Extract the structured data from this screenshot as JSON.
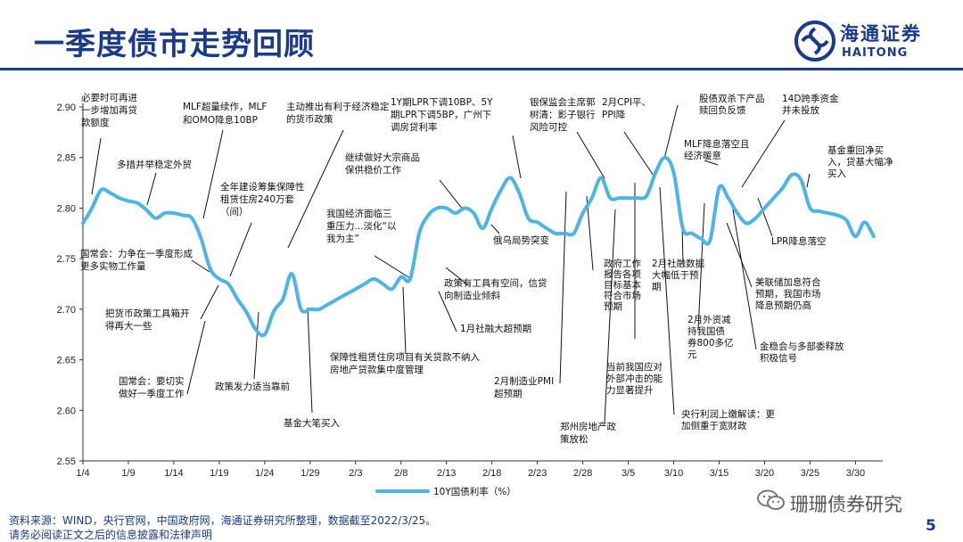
{
  "slide": {
    "title": "一季度债市走势回顾",
    "logo_cn": "海通证券",
    "logo_en": "HAITONG",
    "source": "资料来源：WIND，央行官网，中国政府网，海通证券研究所整理，数据截至2022/3/25。",
    "disclaimer": "请务必阅读正文之后的信息披露和法律声明",
    "watermark": "珊珊债券研究",
    "page_number": "5"
  },
  "colors": {
    "line": "#4db4e6",
    "brand": "#1a3a8c"
  },
  "chart_data": {
    "type": "line",
    "title": "",
    "xlabel": "",
    "ylabel": "",
    "ylim": [
      2.55,
      2.9
    ],
    "yticks": [
      "2.90",
      "2.85",
      "2.80",
      "2.75",
      "2.70",
      "2.65",
      "2.60",
      "2.55"
    ],
    "ytick_values": [
      2.9,
      2.85,
      2.8,
      2.75,
      2.7,
      2.65,
      2.6,
      2.55
    ],
    "xtick_labels": [
      "1/4",
      "1/9",
      "1/14",
      "1/19",
      "1/24",
      "1/29",
      "2/3",
      "2/8",
      "2/13",
      "2/18",
      "2/23",
      "2/28",
      "3/5",
      "3/10",
      "3/15",
      "3/20",
      "3/25",
      "3/30"
    ],
    "xtick_days": [
      0,
      5,
      10,
      15,
      20,
      25,
      30,
      35,
      40,
      45,
      50,
      55,
      60,
      65,
      70,
      75,
      80,
      85
    ],
    "xlim": [
      0,
      88
    ],
    "legend": "10Y国债利率（%）",
    "legend_position": "bottom",
    "series": [
      {
        "name": "10Y国债利率（%）",
        "x": [
          0,
          1,
          2,
          3,
          4,
          5,
          6,
          7,
          8,
          9,
          10,
          11,
          12,
          13,
          14,
          15,
          16,
          17,
          18,
          19,
          20,
          21,
          22,
          23,
          24,
          25,
          26,
          27,
          28,
          29,
          30,
          31,
          32,
          33,
          34,
          35,
          36,
          37,
          38,
          39,
          40,
          41,
          42,
          43,
          44,
          45,
          46,
          47,
          48,
          49,
          50,
          51,
          52,
          53,
          54,
          55,
          56,
          57,
          58,
          59,
          60,
          61,
          62,
          63,
          64,
          65,
          66,
          67,
          68,
          69,
          70,
          71,
          72,
          73,
          74,
          75,
          76,
          77,
          78,
          79,
          80,
          81,
          82,
          83,
          84,
          85,
          86,
          87
        ],
        "values": [
          2.785,
          2.8,
          2.818,
          2.815,
          2.81,
          2.807,
          2.805,
          2.798,
          2.79,
          2.795,
          2.795,
          2.793,
          2.79,
          2.77,
          2.74,
          2.73,
          2.725,
          2.71,
          2.697,
          2.68,
          2.675,
          2.698,
          2.71,
          2.735,
          2.7,
          2.7,
          2.7,
          2.705,
          2.71,
          2.715,
          2.72,
          2.725,
          2.73,
          2.725,
          2.72,
          2.732,
          2.73,
          2.775,
          2.793,
          2.8,
          2.8,
          2.795,
          2.8,
          2.795,
          2.78,
          2.8,
          2.818,
          2.83,
          2.815,
          2.79,
          2.786,
          2.78,
          2.775,
          2.775,
          2.775,
          2.795,
          2.81,
          2.83,
          2.81,
          2.81,
          2.81,
          2.81,
          2.812,
          2.835,
          2.85,
          2.835,
          2.78,
          2.775,
          2.77,
          2.768,
          2.82,
          2.81,
          2.795,
          2.785,
          2.79,
          2.8,
          2.81,
          2.82,
          2.833,
          2.828,
          2.8,
          2.797,
          2.795,
          2.793,
          2.788,
          2.772,
          2.786,
          2.772
        ]
      }
    ],
    "annotations": [
      {
        "id": "n01",
        "lines": [
          "必要时可再进",
          "一步增加再贷",
          "款额度"
        ]
      },
      {
        "id": "n02",
        "lines": [
          "多措并举稳定外贸"
        ]
      },
      {
        "id": "n03",
        "lines": [
          "MLF超量续作，MLF",
          "和OMO降息10BP"
        ]
      },
      {
        "id": "n04",
        "lines": [
          "主动推出有利于经济稳定",
          "的货币政策"
        ]
      },
      {
        "id": "n05",
        "lines": [
          "1Y期LPR下调10BP、5Y",
          "期LPR下调5BP，广州下",
          "调房贷利率"
        ]
      },
      {
        "id": "n06",
        "lines": [
          "银保监会主席郭",
          "树清：影子银行",
          "风险可控"
        ]
      },
      {
        "id": "n07",
        "lines": [
          "2月CPI平、",
          "PPI降"
        ]
      },
      {
        "id": "n08",
        "lines": [
          "股债双杀下产品",
          "赎回负反馈"
        ]
      },
      {
        "id": "n09",
        "lines": [
          "14D跨季资金",
          "并未投放"
        ]
      },
      {
        "id": "n10",
        "lines": [
          "MLF降息落空且",
          "经济暖意"
        ]
      },
      {
        "id": "n11",
        "lines": [
          "基金重回净买",
          "入，贷基大幅净",
          "买入"
        ]
      },
      {
        "id": "n12",
        "lines": [
          "继续做好大宗商品",
          "保供稳价工作"
        ]
      },
      {
        "id": "n13",
        "lines": [
          "全年建设筹集保障性",
          "租赁住房240万套",
          "（间）"
        ]
      },
      {
        "id": "n14",
        "lines": [
          "我国经济面临三",
          "重压力...淡化“以",
          "我为主”"
        ]
      },
      {
        "id": "n15",
        "lines": [
          "俄乌局势突变"
        ]
      },
      {
        "id": "n16",
        "lines": [
          "LPR降息落空"
        ]
      },
      {
        "id": "n17",
        "lines": [
          "国常会：力争在一季度形成",
          "更多实物工作量"
        ]
      },
      {
        "id": "n18",
        "lines": [
          "政府工作",
          "报告各项",
          "目标基本",
          "符合市场",
          "预期"
        ]
      },
      {
        "id": "n19",
        "lines": [
          "2月社融数据",
          "大幅低于预",
          "期"
        ]
      },
      {
        "id": "n20",
        "lines": [
          "美联储加息符合",
          "预期，我国市场",
          "降息预期仍高"
        ]
      },
      {
        "id": "n21",
        "lines": [
          "政策有工具有空间，信贷",
          "向制造业倾斜"
        ]
      },
      {
        "id": "n22",
        "lines": [
          "把货币政策工具箱开",
          "得再大一些"
        ]
      },
      {
        "id": "n23",
        "lines": [
          "1月社融大超预期"
        ]
      },
      {
        "id": "n24",
        "lines": [
          "2月外资减",
          "持我国债",
          "券800多亿",
          "元"
        ]
      },
      {
        "id": "n25",
        "lines": [
          "金稳会与多部委释放",
          "积极信号"
        ]
      },
      {
        "id": "n26",
        "lines": [
          "保障性租赁住房项目有关贷款不纳入",
          "房地产贷款集中度管理"
        ]
      },
      {
        "id": "n27",
        "lines": [
          "当前我国应对",
          "外部冲击的能",
          "力显著提升"
        ]
      },
      {
        "id": "n28",
        "lines": [
          "国常会：要切实",
          "做好一季度工作"
        ]
      },
      {
        "id": "n29",
        "lines": [
          "政策发力适当靠前"
        ]
      },
      {
        "id": "n30",
        "lines": [
          "2月制造业PMI",
          "超预期"
        ]
      },
      {
        "id": "n31",
        "lines": [
          "央行利润上缴解读：更",
          "加侧重于宽财政"
        ]
      },
      {
        "id": "n32",
        "lines": [
          "基金大笔买入"
        ]
      },
      {
        "id": "n33",
        "lines": [
          "郑州房地产政",
          "策放松"
        ]
      }
    ]
  }
}
